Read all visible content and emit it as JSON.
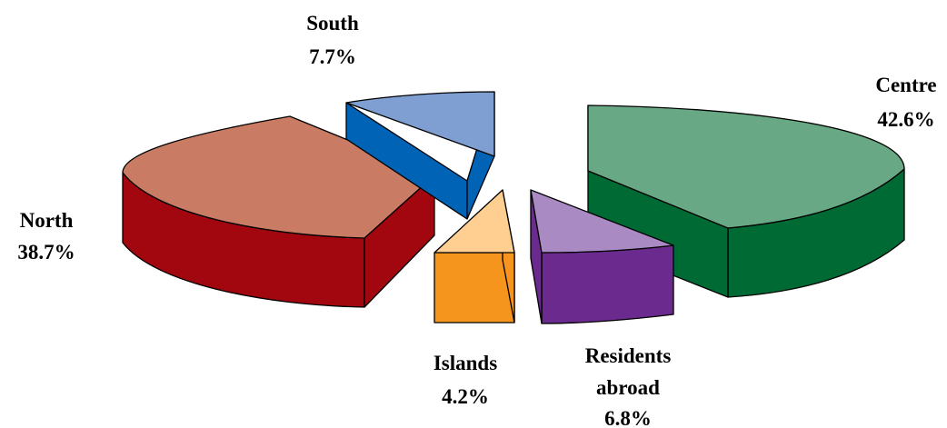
{
  "chart_data": {
    "type": "pie",
    "style": "3d-exploded",
    "title": "",
    "slices": [
      {
        "label": "Centre",
        "value": 42.6,
        "value_text": "42.6%",
        "top_color": "#69a884",
        "side_color": "#006a35"
      },
      {
        "label": "Residents abroad",
        "value": 6.8,
        "value_text": "6.8%",
        "top_color": "#a98ac2",
        "side_color": "#6b2a8e"
      },
      {
        "label": "Islands",
        "value": 4.2,
        "value_text": "4.2%",
        "top_color": "#fecf90",
        "side_color": "#f5951e"
      },
      {
        "label": "North",
        "value": 38.7,
        "value_text": "38.7%",
        "top_color": "#c97b64",
        "side_color": "#a2070f"
      },
      {
        "label": "South",
        "value": 7.7,
        "value_text": "7.7%",
        "top_color": "#7f9fd3",
        "side_color": "#0063b5"
      }
    ]
  }
}
